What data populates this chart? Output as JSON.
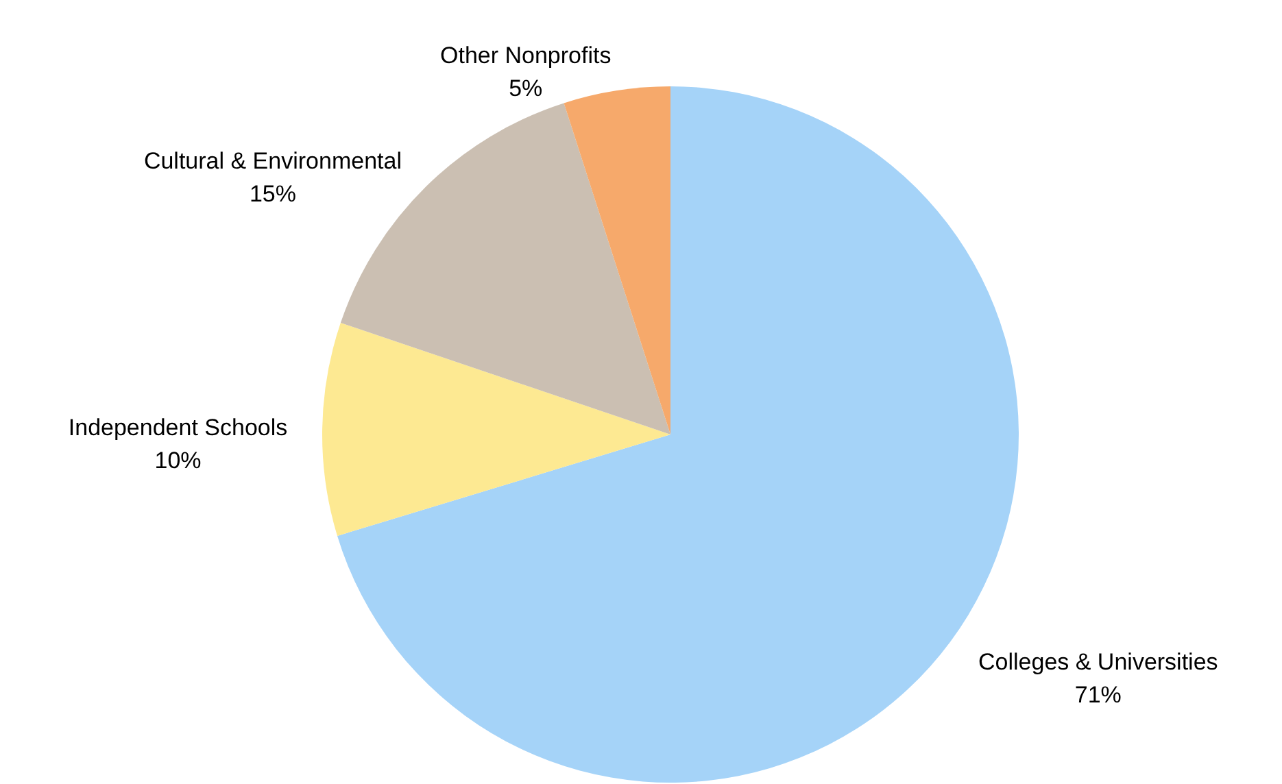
{
  "chart_data": {
    "type": "pie",
    "categories": [
      "Colleges & Universities",
      "Independent Schools",
      "Cultural & Environmental",
      "Other Nonprofits"
    ],
    "values": [
      71,
      10,
      15,
      5
    ],
    "value_labels": [
      "71%",
      "10%",
      "15%",
      "5%"
    ],
    "colors": [
      "#a5d3f8",
      "#fde992",
      "#cbbfb2",
      "#f6a96b"
    ]
  }
}
